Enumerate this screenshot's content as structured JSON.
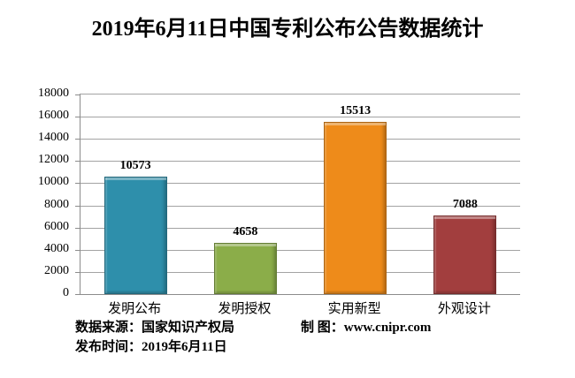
{
  "title": "2019年6月11日中国专利公布公告数据统计",
  "chart_data": {
    "type": "bar",
    "title": "2019年6月11日中国专利公布公告数据统计",
    "categories": [
      "发明公布",
      "发明授权",
      "实用新型",
      "外观设计"
    ],
    "values": [
      10573,
      4658,
      15513,
      7088
    ],
    "value_labels": [
      "10573",
      "4658",
      "15513",
      "7088"
    ],
    "bar_colors": [
      "#2e8fab",
      "#8bad49",
      "#ee8b1a",
      "#a23e3e"
    ],
    "xlabel": "",
    "ylabel": "",
    "ylim": [
      0,
      18000
    ],
    "yticks": [
      0,
      2000,
      4000,
      6000,
      8000,
      10000,
      12000,
      14000,
      16000,
      18000
    ],
    "grid": true,
    "legend": false,
    "legend_position": "none"
  },
  "footer": {
    "source_label": "数据来源：国家知识产权局",
    "credit_label": "制 图：www.cnipr.com",
    "date_label": "发布时间：2019年6月11日"
  },
  "colors": {
    "background": "#ffffff",
    "gridline": "#a3a3a3",
    "axis": "#8c8c8c",
    "text": "#000000"
  }
}
